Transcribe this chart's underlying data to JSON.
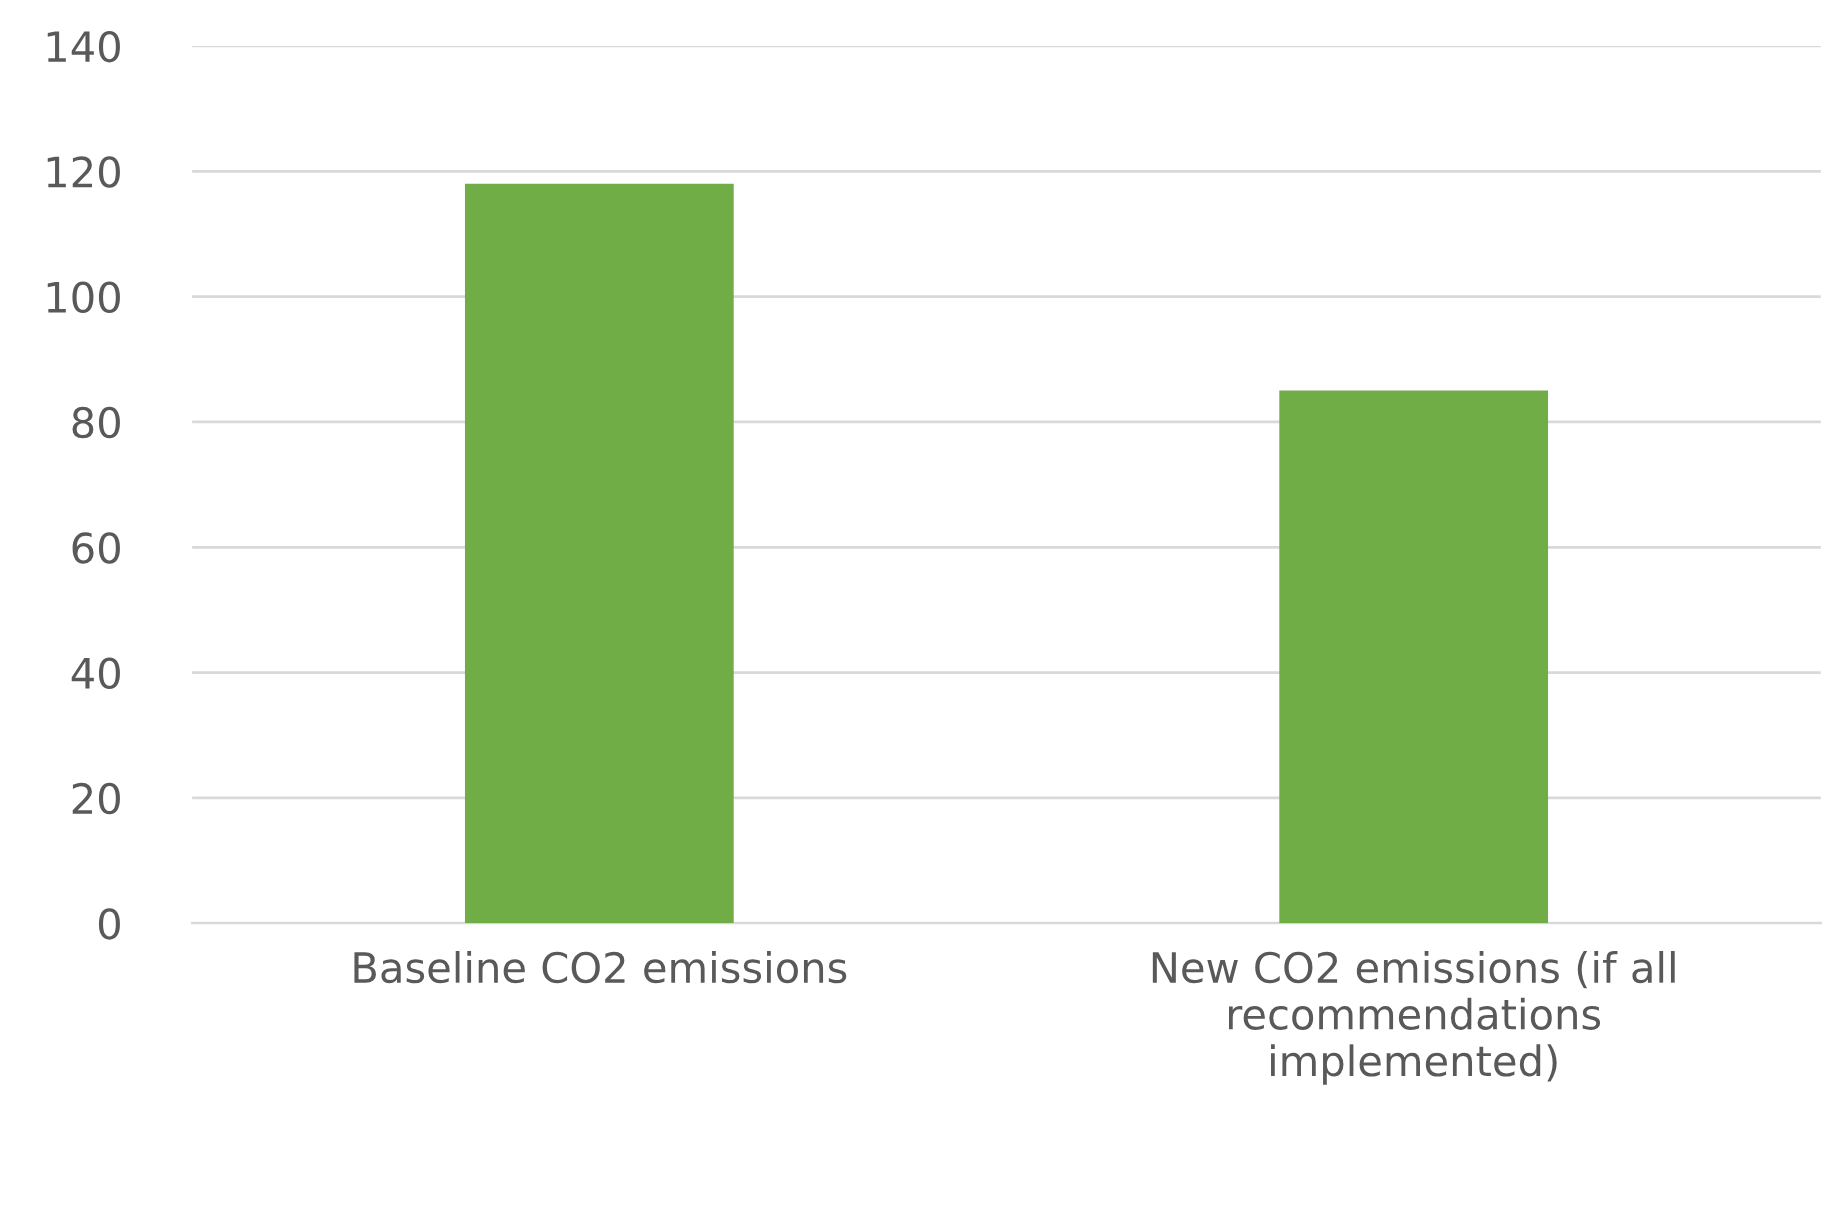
{
  "chart_data": {
    "type": "bar",
    "categories": [
      "Baseline CO2 emissions",
      "New CO2 emissions (if all\nrecommendations\nimplemented)"
    ],
    "values": [
      118,
      85
    ],
    "color": "#70ad47",
    "ylim": [
      0,
      140
    ],
    "yticks": [
      0,
      20,
      40,
      60,
      80,
      100,
      120,
      140
    ],
    "grid": "y"
  }
}
